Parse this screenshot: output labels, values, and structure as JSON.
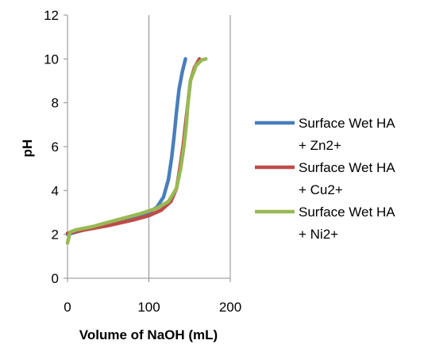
{
  "chart_data": {
    "type": "line",
    "title": "",
    "xlabel": "Volume of NaOH (mL)",
    "ylabel": "pH",
    "xlim": [
      0,
      200
    ],
    "ylim": [
      0,
      12
    ],
    "x_ticks": [
      "0",
      "100",
      "200"
    ],
    "y_ticks": [
      "0",
      "2",
      "4",
      "6",
      "8",
      "10",
      "12"
    ],
    "grid": "vertical",
    "legend_position": "right",
    "series": [
      {
        "name_lines": [
          "Surface Wet HA",
          "+ Zn2+"
        ],
        "color": "#4a7ebb",
        "points": [
          [
            0,
            2.0
          ],
          [
            20,
            2.2
          ],
          [
            50,
            2.45
          ],
          [
            80,
            2.75
          ],
          [
            100,
            3.0
          ],
          [
            110,
            3.25
          ],
          [
            118,
            3.7
          ],
          [
            124,
            4.5
          ],
          [
            128,
            5.5
          ],
          [
            131,
            6.5
          ],
          [
            134,
            7.6
          ],
          [
            137,
            8.6
          ],
          [
            141,
            9.4
          ],
          [
            145,
            10.0
          ]
        ]
      },
      {
        "name_lines": [
          "Surface Wet HA",
          "+ Cu2+"
        ],
        "color": "#be4b48",
        "points": [
          [
            0,
            2.05
          ],
          [
            20,
            2.2
          ],
          [
            50,
            2.4
          ],
          [
            80,
            2.65
          ],
          [
            100,
            2.85
          ],
          [
            115,
            3.1
          ],
          [
            127,
            3.5
          ],
          [
            134,
            4.1
          ],
          [
            138,
            5.0
          ],
          [
            142,
            6.0
          ],
          [
            145,
            7.0
          ],
          [
            148,
            8.0
          ],
          [
            151,
            9.0
          ],
          [
            156,
            9.6
          ],
          [
            162,
            10.0
          ]
        ]
      },
      {
        "name_lines": [
          "Surface Wet HA",
          "+ Ni2+"
        ],
        "color": "#98b954",
        "points": [
          [
            0,
            1.6
          ],
          [
            3,
            2.1
          ],
          [
            10,
            2.2
          ],
          [
            30,
            2.35
          ],
          [
            60,
            2.65
          ],
          [
            90,
            2.95
          ],
          [
            110,
            3.2
          ],
          [
            124,
            3.5
          ],
          [
            134,
            4.1
          ],
          [
            139,
            5.0
          ],
          [
            143,
            6.0
          ],
          [
            146,
            7.0
          ],
          [
            148,
            8.0
          ],
          [
            151,
            9.0
          ],
          [
            158,
            9.7
          ],
          [
            165,
            9.95
          ],
          [
            170,
            10.0
          ]
        ]
      }
    ]
  }
}
